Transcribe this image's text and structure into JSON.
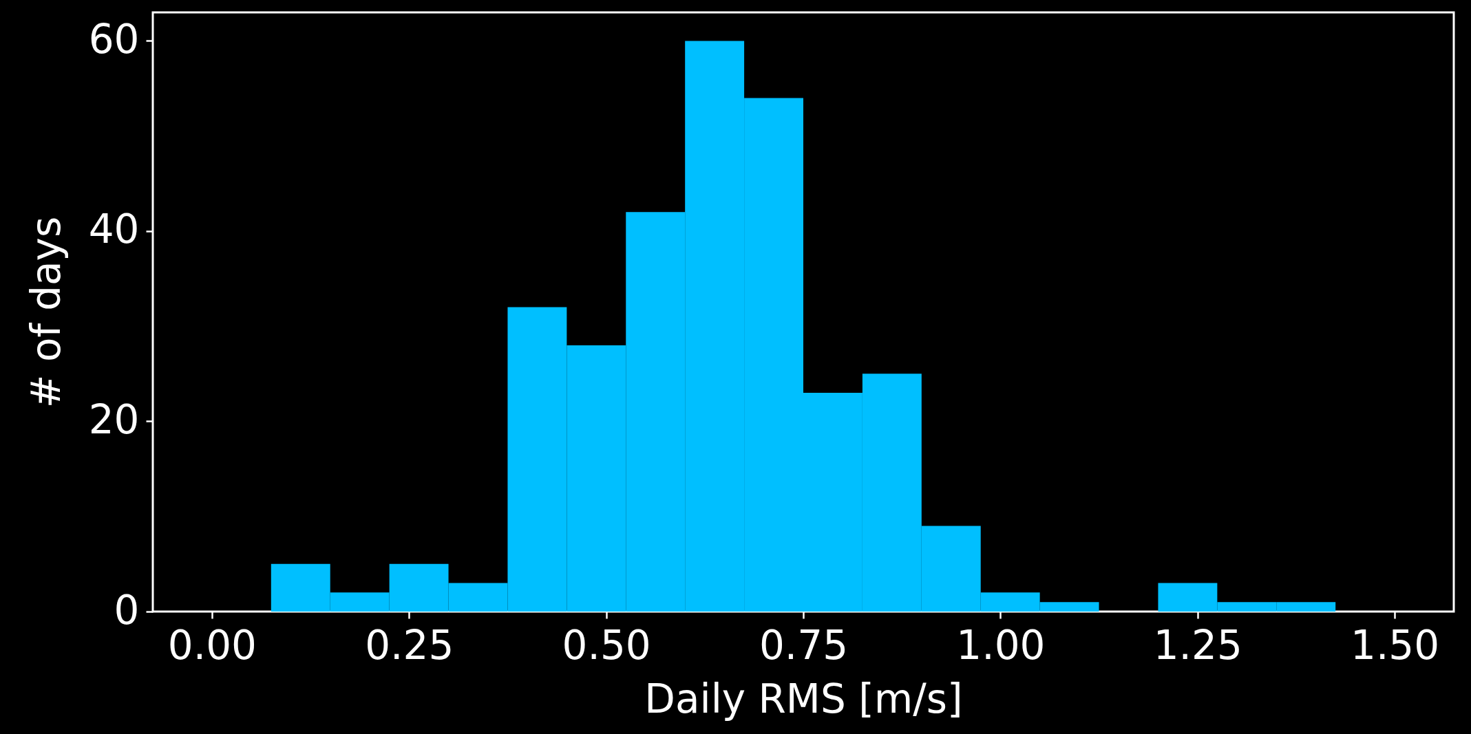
{
  "chart_data": {
    "type": "histogram",
    "xlabel": "Daily RMS [m/s]",
    "ylabel": "# of days",
    "bins": [
      0,
      0.075,
      0.15,
      0.225,
      0.3,
      0.375,
      0.45,
      0.525,
      0.6,
      0.675,
      0.75,
      0.825,
      0.9,
      0.975,
      1.05,
      1.125,
      1.2,
      1.275,
      1.35,
      1.425,
      1.5
    ],
    "values": [
      0,
      5,
      2,
      5,
      3,
      32,
      28,
      42,
      60,
      54,
      23,
      25,
      9,
      2,
      1,
      0,
      3,
      1,
      1,
      0
    ],
    "color": "#00bfff",
    "xlim": [
      -0.075,
      1.575
    ],
    "xticks": [
      {
        "value": 0,
        "label": "0.00"
      },
      {
        "value": 0.25,
        "label": "0.25"
      },
      {
        "value": 0.5,
        "label": "0.50"
      },
      {
        "value": 0.75,
        "label": "0.75"
      },
      {
        "value": 1,
        "label": "1.00"
      },
      {
        "value": 1.25,
        "label": "1.25"
      },
      {
        "value": 1.5,
        "label": "1.50"
      }
    ],
    "ylim": [
      0,
      63
    ],
    "yticks": [
      0,
      20,
      40,
      60
    ],
    "grid": false
  }
}
